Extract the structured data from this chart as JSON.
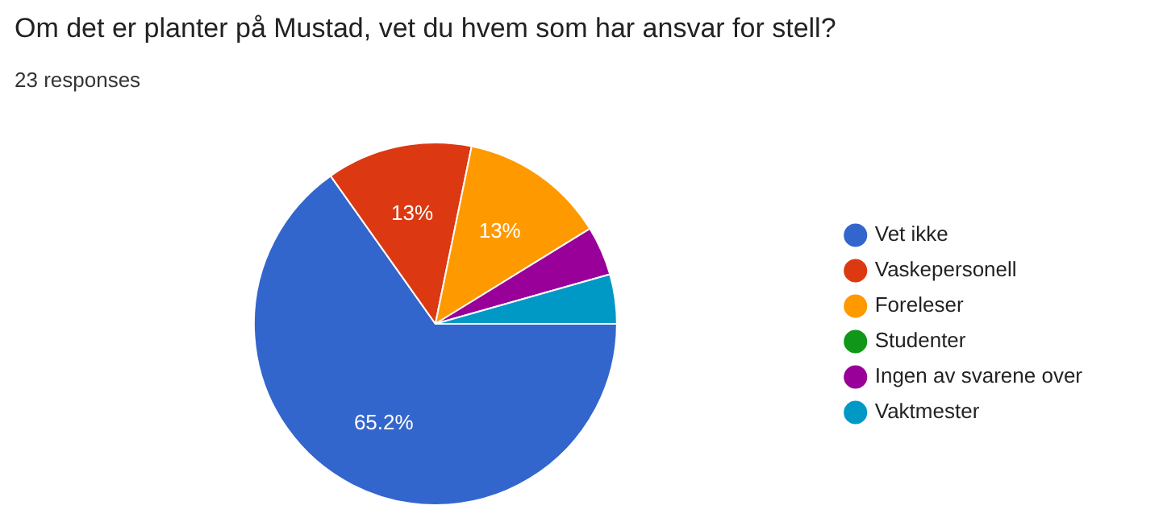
{
  "chart_data": {
    "type": "pie",
    "title": "Om det er planter på Mustad, vet du hvem som har ansvar for stell?",
    "subtitle": "23 responses",
    "categories": [
      "Vet ikke",
      "Vaskepersonell",
      "Foreleser",
      "Studenter",
      "Ingen av svarene over",
      "Vaktmester"
    ],
    "values": [
      65.2,
      13,
      13,
      0,
      4.4,
      4.4
    ],
    "colors": [
      "#3366cc",
      "#dc3912",
      "#ff9900",
      "#109618",
      "#990099",
      "#0099c6"
    ],
    "value_labels": [
      "65.2%",
      "13%",
      "13%",
      null,
      null,
      null
    ],
    "legend": "right"
  }
}
